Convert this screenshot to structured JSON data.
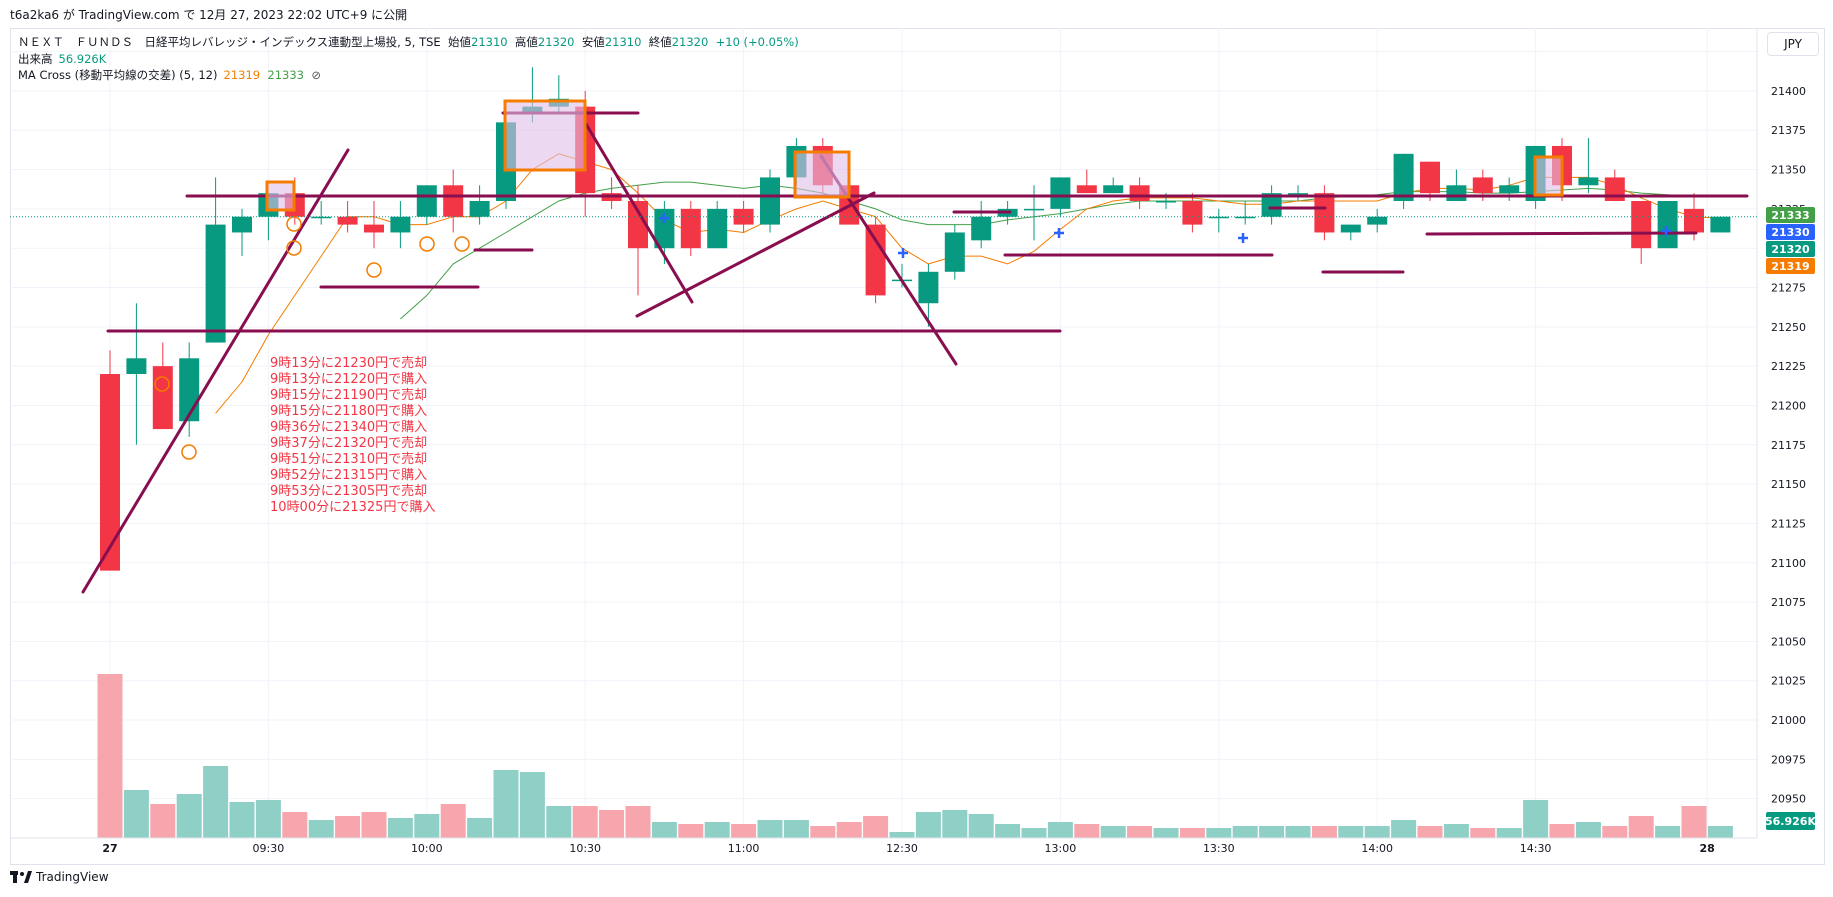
{
  "header": {
    "publish_line": "t6a2ka6 が TradingView.com で 12月 27, 2023 22:02 UTC+9 に公開"
  },
  "legend": {
    "symbol": "ＮＥＸＴ　ＦＵＮＤＳ　日経平均レバレッジ・インデックス連動型上場投, 5, TSE",
    "open_label": "始値",
    "open": "21310",
    "high_label": "高値",
    "high": "21320",
    "low_label": "安値",
    "low": "21310",
    "close_label": "終値",
    "close": "21320",
    "change": "+10 (+0.05%)",
    "volume_label": "出来高",
    "volume": "56.926K",
    "ma_label": "MA Cross (移動平均線の交差) (5, 12)",
    "ma_fast": "21319",
    "ma_slow": "21333",
    "ma_icon": "eye-off-icon"
  },
  "currency": "JPY",
  "footer": {
    "brand": "TradingView",
    "logo_icon": "tradingview-logo-icon"
  },
  "annotation_lines": [
    "9時13分に21230円で売却",
    "9時13分に21220円で購入",
    "9時15分に21190円で売却",
    "9時15分に21180円で購入",
    "9時36分に21340円で購入",
    "9時37分に21320円で売却",
    "9時51分に21310円で売却",
    "9時52分に21315円で購入",
    "9時53分に21305円で売却",
    "10時00分に21325円で購入"
  ],
  "colors": {
    "up": "#089981",
    "down": "#f23645",
    "vol_up": "#8fd0c6",
    "vol_down": "#f7a6ad",
    "ma_fast": "#f57c00",
    "ma_slow": "#43a047",
    "trendline": "#880e4f",
    "box_border": "#f57c00",
    "box_fill": "#e1bee7",
    "cross_marker": "#2962ff",
    "annotation_text": "#f23645"
  },
  "chart_data": {
    "type": "candlestick",
    "interval": "5",
    "ylim": [
      20925,
      21440
    ],
    "y_ticks": [
      20950,
      20975,
      21000,
      21025,
      21050,
      21075,
      21100,
      21125,
      21150,
      21175,
      21200,
      21225,
      21250,
      21275,
      21300,
      21325,
      21350,
      21375,
      21400,
      21425
    ],
    "x_tick_labels": [
      {
        "label": "27",
        "index": 0,
        "bold": true
      },
      {
        "label": "09:30",
        "index": 6
      },
      {
        "label": "10:00",
        "index": 12
      },
      {
        "label": "10:30",
        "index": 18
      },
      {
        "label": "11:00",
        "index": 24
      },
      {
        "label": "12:30",
        "index": 30
      },
      {
        "label": "13:00",
        "index": 36
      },
      {
        "label": "13:30",
        "index": 42
      },
      {
        "label": "14:00",
        "index": 48
      },
      {
        "label": "14:30",
        "index": 54
      },
      {
        "label": "28",
        "index": 60.5,
        "bold": true
      }
    ],
    "candles": [
      [
        21220,
        21235,
        21095,
        21095,
        0.82
      ],
      [
        21220,
        21265,
        21175,
        21230,
        0.24
      ],
      [
        21225,
        21240,
        21185,
        21185,
        0.17
      ],
      [
        21190,
        21240,
        21180,
        21230,
        0.22
      ],
      [
        21240,
        21345,
        21240,
        21315,
        0.36
      ],
      [
        21310,
        21325,
        21295,
        21320,
        0.18
      ],
      [
        21320,
        21335,
        21305,
        21335,
        0.19
      ],
      [
        21335,
        21345,
        21315,
        21320,
        0.13
      ],
      [
        21320,
        21330,
        21315,
        21320,
        0.09
      ],
      [
        21320,
        21330,
        21310,
        21315,
        0.11
      ],
      [
        21315,
        21330,
        21300,
        21310,
        0.13
      ],
      [
        21310,
        21330,
        21300,
        21320,
        0.1
      ],
      [
        21320,
        21340,
        21315,
        21340,
        0.12
      ],
      [
        21340,
        21350,
        21310,
        21320,
        0.17
      ],
      [
        21320,
        21340,
        21315,
        21330,
        0.1
      ],
      [
        21330,
        21390,
        21325,
        21380,
        0.34
      ],
      [
        21385,
        21415,
        21380,
        21390,
        0.33
      ],
      [
        21390,
        21410,
        21385,
        21395,
        0.16
      ],
      [
        21390,
        21400,
        21320,
        21335,
        0.16
      ],
      [
        21335,
        21345,
        21325,
        21330,
        0.14
      ],
      [
        21330,
        21340,
        21270,
        21300,
        0.16
      ],
      [
        21300,
        21330,
        21290,
        21325,
        0.08
      ],
      [
        21325,
        21330,
        21295,
        21300,
        0.07
      ],
      [
        21300,
        21330,
        21300,
        21325,
        0.08
      ],
      [
        21325,
        21330,
        21310,
        21315,
        0.07
      ],
      [
        21315,
        21350,
        21310,
        21345,
        0.09
      ],
      [
        21345,
        21370,
        21340,
        21365,
        0.09
      ],
      [
        21365,
        21370,
        21335,
        21340,
        0.06
      ],
      [
        21340,
        21345,
        21315,
        21315,
        0.08
      ],
      [
        21315,
        21320,
        21265,
        21270,
        0.11
      ],
      [
        21280,
        21290,
        21275,
        21280,
        0.03
      ],
      [
        21265,
        21290,
        21250,
        21285,
        0.13
      ],
      [
        21285,
        21315,
        21280,
        21310,
        0.14
      ],
      [
        21305,
        21330,
        21300,
        21320,
        0.12
      ],
      [
        21320,
        21330,
        21315,
        21325,
        0.07
      ],
      [
        21325,
        21340,
        21305,
        21325,
        0.05
      ],
      [
        21325,
        21345,
        21320,
        21345,
        0.08
      ],
      [
        21340,
        21350,
        21335,
        21335,
        0.07
      ],
      [
        21335,
        21345,
        21335,
        21340,
        0.06
      ],
      [
        21340,
        21345,
        21325,
        21330,
        0.06
      ],
      [
        21330,
        21335,
        21325,
        21330,
        0.05
      ],
      [
        21330,
        21335,
        21310,
        21315,
        0.05
      ],
      [
        21320,
        21325,
        21310,
        21320,
        0.05
      ],
      [
        21320,
        21330,
        21315,
        21320,
        0.06
      ],
      [
        21320,
        21340,
        21315,
        21335,
        0.06
      ],
      [
        21335,
        21340,
        21330,
        21335,
        0.06
      ],
      [
        21335,
        21340,
        21305,
        21310,
        0.06
      ],
      [
        21310,
        21315,
        21305,
        21315,
        0.06
      ],
      [
        21315,
        21325,
        21310,
        21320,
        0.06
      ],
      [
        21330,
        21360,
        21325,
        21360,
        0.09
      ],
      [
        21355,
        21355,
        21330,
        21335,
        0.06
      ],
      [
        21330,
        21350,
        21330,
        21340,
        0.07
      ],
      [
        21345,
        21350,
        21330,
        21335,
        0.05
      ],
      [
        21335,
        21345,
        21330,
        21340,
        0.05
      ],
      [
        21330,
        21365,
        21325,
        21365,
        0.19
      ],
      [
        21365,
        21370,
        21330,
        21340,
        0.07
      ],
      [
        21340,
        21370,
        21335,
        21345,
        0.08
      ],
      [
        21345,
        21350,
        21330,
        21330,
        0.06
      ],
      [
        21330,
        21330,
        21290,
        21300,
        0.11
      ],
      [
        21300,
        21330,
        21300,
        21330,
        0.06
      ],
      [
        21325,
        21335,
        21305,
        21310,
        0.16
      ],
      [
        21310,
        21320,
        21310,
        21320,
        0.06
      ]
    ],
    "ma_fast_values": [
      null,
      null,
      null,
      null,
      21195,
      21215,
      21245,
      21270,
      21295,
      21320,
      21320,
      21315,
      21315,
      21320,
      21320,
      21330,
      21350,
      21360,
      21355,
      21350,
      21335,
      21318,
      21310,
      21312,
      21310,
      21318,
      21325,
      21330,
      21325,
      21320,
      21300,
      21290,
      21295,
      21295,
      21290,
      21298,
      21312,
      21325,
      21330,
      21332,
      21332,
      21332,
      21330,
      21328,
      21328,
      21330,
      21330,
      21330,
      21330,
      21335,
      21338,
      21338,
      21337,
      21340,
      21345,
      21345,
      21345,
      21340,
      21332,
      21325,
      21320,
      21319
    ],
    "ma_slow_values": [
      null,
      null,
      null,
      null,
      null,
      null,
      null,
      null,
      null,
      null,
      null,
      21255,
      21270,
      21290,
      21300,
      21310,
      21320,
      21330,
      21335,
      21338,
      21340,
      21342,
      21342,
      21340,
      21338,
      21340,
      21338,
      21335,
      21330,
      21325,
      21318,
      21315,
      21315,
      21315,
      21318,
      21320,
      21322,
      21325,
      21328,
      21330,
      21330,
      21330,
      21330,
      21330,
      21330,
      21330,
      21332,
      21333,
      21334,
      21336,
      21336,
      21336,
      21335,
      21335,
      21336,
      21337,
      21338,
      21337,
      21335,
      21334,
      21333,
      21333
    ],
    "price_labels": [
      {
        "value": "21333",
        "color": "#43a047"
      },
      {
        "value": "21330",
        "color": "#2962ff"
      },
      {
        "value": "21320",
        "color": "#089981"
      },
      {
        "value": "21319",
        "color": "#f57c00"
      }
    ],
    "volume_label": "56.926K"
  }
}
